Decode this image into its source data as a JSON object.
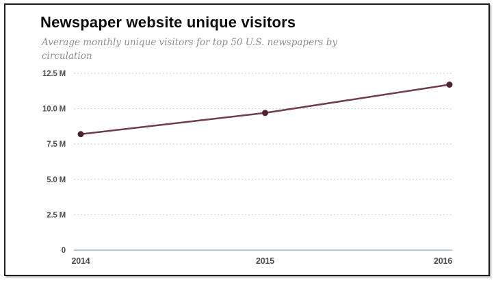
{
  "page": {
    "title": "Newspaper website unique visitors",
    "subtitle": "Average monthly unique visitors for top 50 U.S. newspapers by circulation"
  },
  "chart_data": {
    "type": "line",
    "title": "Newspaper website unique visitors",
    "subtitle": "Average monthly unique visitors for top 50 U.S. newspapers by circulation",
    "categories": [
      "2014",
      "2015",
      "2016"
    ],
    "series": [
      {
        "name": "Average monthly unique visitors (millions)",
        "values": [
          8.2,
          9.7,
          11.7
        ]
      }
    ],
    "unit": "M",
    "xlabel": "",
    "ylabel": "",
    "ylim": [
      0,
      12.5
    ],
    "yticks": [
      {
        "value": 0,
        "label": "0"
      },
      {
        "value": 2.5,
        "label": "2.5 M"
      },
      {
        "value": 5,
        "label": "5.0 M"
      },
      {
        "value": 7.5,
        "label": "7.5 M"
      },
      {
        "value": 10,
        "label": "10.0 M"
      },
      {
        "value": 12.5,
        "label": "12.5 M"
      }
    ],
    "grid": "horizontal-dashed",
    "legend": "none",
    "colors": {
      "line": "#6e3c4c",
      "point": "#4e2233",
      "grid": "#c9c9c9",
      "baseline": "#b8ccd8",
      "tick_text": "#4f4f4f",
      "title_text": "#0b0b0b",
      "subtitle_text": "#8e8e8e"
    }
  }
}
